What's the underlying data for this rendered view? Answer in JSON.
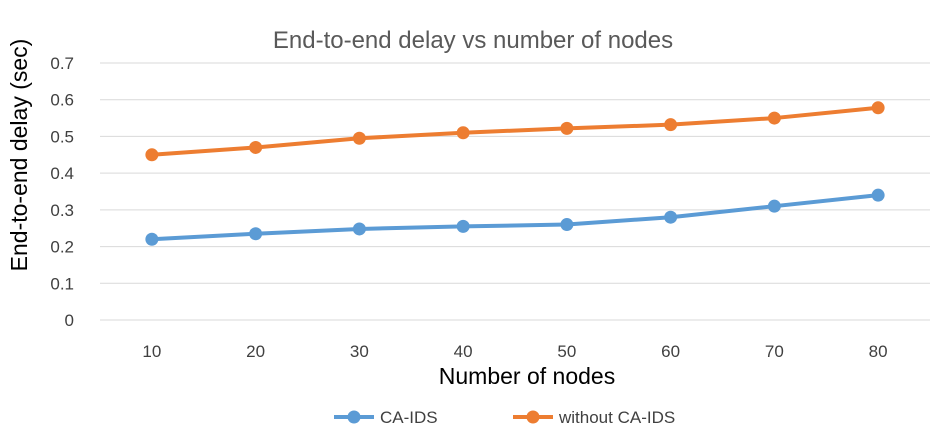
{
  "chart_data": {
    "type": "line",
    "title": "End-to-end delay vs number of nodes",
    "xlabel": "Number of nodes",
    "ylabel": "End-to-end delay (sec)",
    "categories": [
      "10",
      "20",
      "30",
      "40",
      "50",
      "60",
      "70",
      "80"
    ],
    "y_ticks": [
      "0",
      "0.1",
      "0.2",
      "0.3",
      "0.4",
      "0.5",
      "0.6",
      "0.7"
    ],
    "ylim": [
      0,
      0.7
    ],
    "grid": true,
    "legend_position": "bottom",
    "series": [
      {
        "name": "CA-IDS",
        "color": "#5b9bd5",
        "values": [
          0.22,
          0.235,
          0.248,
          0.255,
          0.26,
          0.28,
          0.31,
          0.34
        ]
      },
      {
        "name": "without CA-IDS",
        "color": "#ed7d31",
        "values": [
          0.45,
          0.47,
          0.495,
          0.51,
          0.522,
          0.532,
          0.55,
          0.578
        ]
      }
    ]
  }
}
